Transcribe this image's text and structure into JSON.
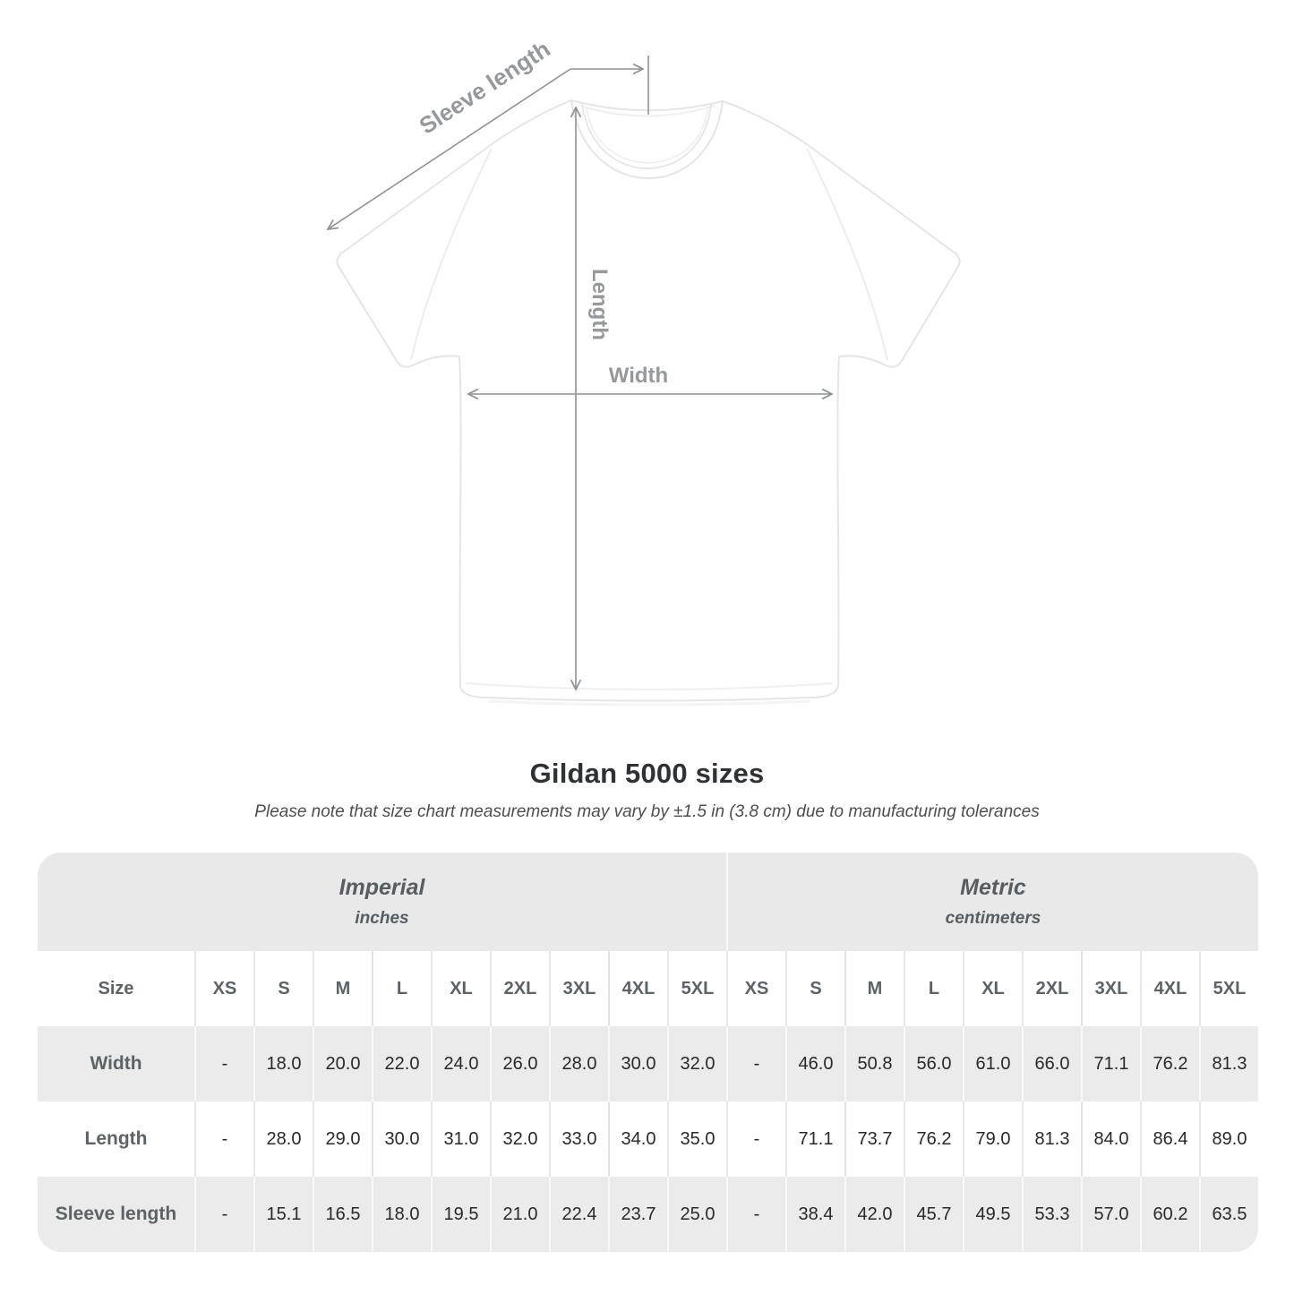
{
  "title": "Gildan 5000 sizes",
  "subtitle": "Please note that size chart measurements may vary by ±1.5 in (3.8 cm) due to manufacturing tolerances",
  "diagram": {
    "sleeve_length_label": "Sleeve length",
    "length_label": "Length",
    "width_label": "Width"
  },
  "size_chart": {
    "groups": [
      {
        "label": "Imperial",
        "unit": "inches"
      },
      {
        "label": "Metric",
        "unit": "centimeters"
      }
    ],
    "size_col_header": "Size",
    "sizes": [
      "XS",
      "S",
      "M",
      "L",
      "XL",
      "2XL",
      "3XL",
      "4XL",
      "5XL"
    ],
    "rows": [
      {
        "label": "Width",
        "imperial": [
          "-",
          "18.0",
          "20.0",
          "22.0",
          "24.0",
          "26.0",
          "28.0",
          "30.0",
          "32.0"
        ],
        "metric": [
          "-",
          "46.0",
          "50.8",
          "56.0",
          "61.0",
          "66.0",
          "71.1",
          "76.2",
          "81.3"
        ]
      },
      {
        "label": "Length",
        "imperial": [
          "-",
          "28.0",
          "29.0",
          "30.0",
          "31.0",
          "32.0",
          "33.0",
          "34.0",
          "35.0"
        ],
        "metric": [
          "-",
          "71.1",
          "73.7",
          "76.2",
          "79.0",
          "81.3",
          "84.0",
          "86.4",
          "89.0"
        ]
      },
      {
        "label": "Sleeve length",
        "imperial": [
          "-",
          "15.1",
          "16.5",
          "18.0",
          "19.5",
          "21.0",
          "22.4",
          "23.7",
          "25.0"
        ],
        "metric": [
          "-",
          "38.4",
          "42.0",
          "45.7",
          "49.5",
          "53.3",
          "57.0",
          "60.2",
          "63.5"
        ]
      }
    ]
  },
  "colors": {
    "band_gray": "#e9e9e9",
    "row_gray": "#ebebeb",
    "header_text": "#5c6366",
    "value_text": "#27292a",
    "arrow": "#8e9295",
    "diagram_label": "#96999c"
  }
}
